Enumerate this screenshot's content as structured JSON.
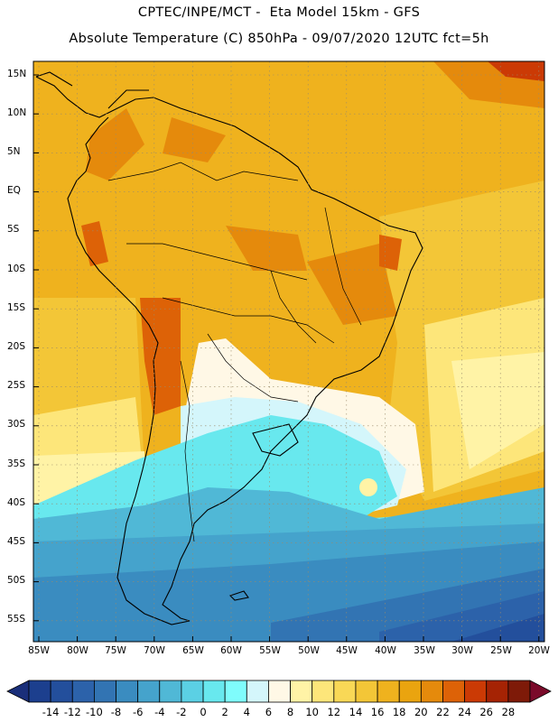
{
  "header": {
    "line1": "CPTEC/INPE/MCT -  Eta Model 15km - GFS",
    "line2": "Absolute Temperature (C) 850hPa - 09/07/2020 12UTC fct=5h"
  },
  "axes": {
    "lat_labels": [
      "15N",
      "10N",
      "5N",
      "EQ",
      "5S",
      "10S",
      "15S",
      "20S",
      "25S",
      "30S",
      "35S",
      "40S",
      "45S",
      "50S",
      "55S"
    ],
    "lon_labels": [
      "85W",
      "80W",
      "75W",
      "70W",
      "65W",
      "60W",
      "55W",
      "50W",
      "45W",
      "40W",
      "35W",
      "30W",
      "25W",
      "20W"
    ]
  },
  "colorbar": {
    "labels": [
      "-14",
      "-12",
      "-10",
      "-8",
      "-6",
      "-4",
      "-2",
      "0",
      "2",
      "4",
      "6",
      "8",
      "10",
      "12",
      "14",
      "16",
      "18",
      "20",
      "22",
      "24",
      "26",
      "28"
    ],
    "colors": [
      "#1c3f8e",
      "#234f9c",
      "#2c62aa",
      "#3274b3",
      "#3a8cc0",
      "#45a3cc",
      "#50b8d6",
      "#5bd0e4",
      "#68e8ee",
      "#7ffcfc",
      "#d4f6fb",
      "#fff8e6",
      "#fff3a6",
      "#fde67a",
      "#f9d856",
      "#f3c637",
      "#efb21e",
      "#eaa40f",
      "#e58a0c",
      "#dd6207",
      "#cb3a05",
      "#a52304",
      "#7e1a08"
    ],
    "under_color": "#1a2f7a",
    "over_color": "#7a0a2a"
  }
}
